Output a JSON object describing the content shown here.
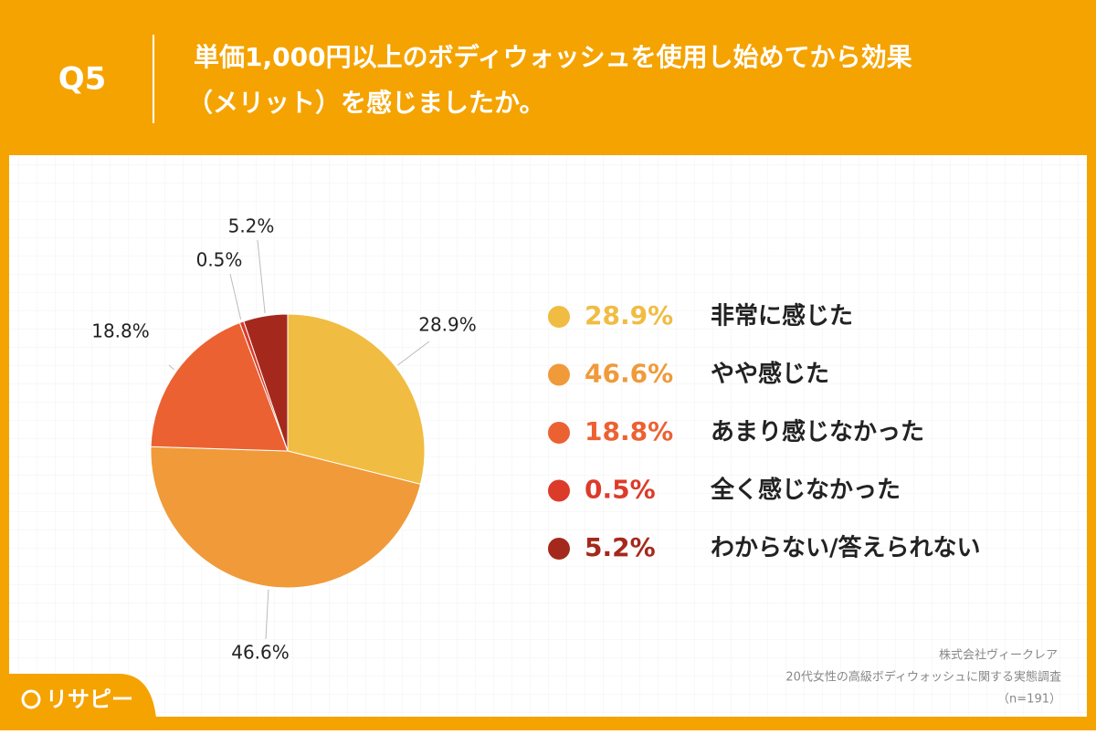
{
  "header": {
    "question": "Q5",
    "title": [
      "単価1,000円以上のボディウォッシュを使用し始めてから効果",
      "（メリット）を感じましたか。"
    ]
  },
  "chart_data": {
    "type": "pie",
    "categories": [
      "非常に感じた",
      "やや感じた",
      "あまり感じなかった",
      "全く感じなかった",
      "わからない/答えられない"
    ],
    "values": [
      28.9,
      46.6,
      18.8,
      0.5,
      5.2
    ],
    "value_labels": [
      "28.9%",
      "46.6%",
      "18.8%",
      "0.5%",
      "5.2%"
    ],
    "colors": [
      "#F0BC42",
      "#F09A3A",
      "#EC6132",
      "#DC3B2A",
      "#A4291C"
    ]
  },
  "footer": {
    "company": "株式会社ヴィークレア",
    "survey": "20代女性の高級ボディウォッシュに関する実態調査",
    "sample": "（n=191）"
  },
  "logo": "リサピー"
}
